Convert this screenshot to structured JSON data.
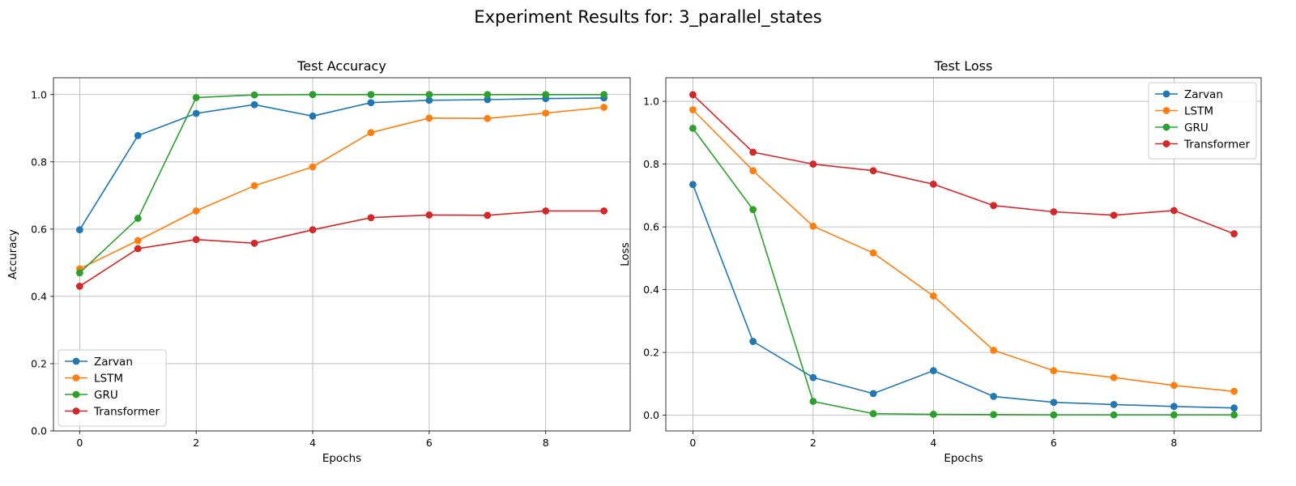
{
  "figure": {
    "suptitle": "Experiment Results for: 3_parallel_states"
  },
  "chart_data": [
    {
      "type": "line",
      "title": "Test Accuracy",
      "xlabel": "Epochs",
      "ylabel": "Accuracy",
      "x": [
        0,
        1,
        2,
        3,
        4,
        5,
        6,
        7,
        8,
        9
      ],
      "xlim": [
        -0.45,
        9.45
      ],
      "ylim": [
        0.0,
        1.05
      ],
      "xticks": [
        0,
        2,
        4,
        6,
        8
      ],
      "yticks": [
        0.0,
        0.2,
        0.4,
        0.6,
        0.8,
        1.0
      ],
      "grid": true,
      "legend_position": "lower-left",
      "series": [
        {
          "name": "Zarvan",
          "color": "#1f77b4",
          "values": [
            0.598,
            0.878,
            0.944,
            0.97,
            0.936,
            0.976,
            0.983,
            0.985,
            0.988,
            0.99
          ]
        },
        {
          "name": "LSTM",
          "color": "#ff7f0e",
          "values": [
            0.482,
            0.566,
            0.654,
            0.729,
            0.785,
            0.887,
            0.93,
            0.929,
            0.945,
            0.962
          ]
        },
        {
          "name": "GRU",
          "color": "#2ca02c",
          "values": [
            0.47,
            0.632,
            0.991,
            0.999,
            1.0,
            1.0,
            1.0,
            1.0,
            1.0,
            1.0
          ]
        },
        {
          "name": "Transformer",
          "color": "#d62728",
          "values": [
            0.43,
            0.542,
            0.569,
            0.558,
            0.598,
            0.634,
            0.642,
            0.641,
            0.654,
            0.654
          ]
        }
      ]
    },
    {
      "type": "line",
      "title": "Test Loss",
      "xlabel": "Epochs",
      "ylabel": "Loss",
      "x": [
        0,
        1,
        2,
        3,
        4,
        5,
        6,
        7,
        8,
        9
      ],
      "xlim": [
        -0.45,
        9.45
      ],
      "ylim": [
        -0.05,
        1.075
      ],
      "xticks": [
        0,
        2,
        4,
        6,
        8
      ],
      "yticks": [
        0.0,
        0.2,
        0.4,
        0.6,
        0.8,
        1.0
      ],
      "grid": true,
      "legend_position": "upper-right",
      "series": [
        {
          "name": "Zarvan",
          "color": "#1f77b4",
          "values": [
            0.735,
            0.235,
            0.12,
            0.069,
            0.142,
            0.06,
            0.041,
            0.034,
            0.028,
            0.023
          ]
        },
        {
          "name": "LSTM",
          "color": "#ff7f0e",
          "values": [
            0.973,
            0.779,
            0.602,
            0.517,
            0.38,
            0.207,
            0.142,
            0.12,
            0.095,
            0.076
          ]
        },
        {
          "name": "GRU",
          "color": "#2ca02c",
          "values": [
            0.914,
            0.655,
            0.044,
            0.005,
            0.003,
            0.002,
            0.001,
            0.001,
            0.001,
            0.001
          ]
        },
        {
          "name": "Transformer",
          "color": "#d62728",
          "values": [
            1.021,
            0.838,
            0.8,
            0.779,
            0.736,
            0.668,
            0.648,
            0.637,
            0.652,
            0.578
          ]
        }
      ]
    }
  ]
}
